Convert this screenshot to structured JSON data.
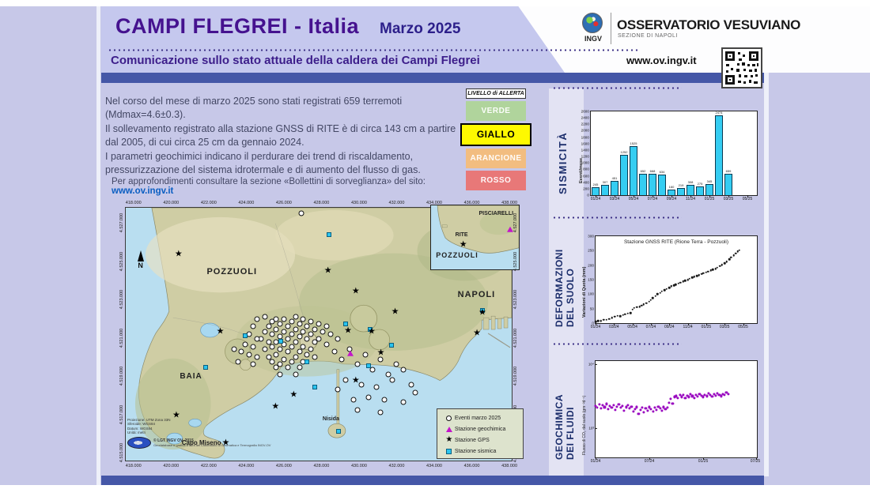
{
  "header": {
    "title": "CAMPI FLEGREI  -  Italia",
    "date": "Marzo 2025",
    "subtitle": "Comunicazione sullo stato attuale della caldera dei Campi Flegrei",
    "org_logo": "INGV",
    "org_name": "OSSERVATORIO VESUVIANO",
    "org_section": "SEZIONE DI NAPOLI",
    "website": "www.ov.ingv.it"
  },
  "summary": {
    "p1": "Nel corso del mese di marzo 2025 sono stati registrati 659 terremoti (Mdmax=4.6±0.3).",
    "p2": "Il sollevamento registrato alla stazione GNSS di RITE è di circa 143 cm a partire dal 2005, di cui circa 25 cm da gennaio 2024.",
    "p3": "I parametri geochimici indicano il perdurare dei trend di riscaldamento, pressurizzazione  del sistema idrotermale e di aumento del flusso di gas.",
    "footer_text": "Per approfondimenti consultare la sezione «Bollettini di sorveglianza» del sito: ",
    "footer_link": "www.ov.ingv.it"
  },
  "alert": {
    "title": "LIVELLO di ALLERTA",
    "levels": [
      {
        "label": "VERDE",
        "color": "#b0d49c",
        "active": false
      },
      {
        "label": "GIALLO",
        "color": "#fef900",
        "active": true
      },
      {
        "label": "ARANCIONE",
        "color": "#f2bd80",
        "active": false
      },
      {
        "label": "ROSSO",
        "color": "#e87878",
        "active": false
      }
    ]
  },
  "map": {
    "x_labels": [
      "418.000",
      "420.000",
      "422.000",
      "424.000",
      "426.000",
      "428.000",
      "430.000",
      "432.000",
      "434.000",
      "436.000",
      "438.000"
    ],
    "y_labels": [
      "4.527.000",
      "4.525.000",
      "4.523.000",
      "4.521.000",
      "4.519.000",
      "4.517.000",
      "4.515.000"
    ],
    "north_label": "N",
    "places": {
      "pozzuoli": "POZZUOLI",
      "napoli": "NAPOLI",
      "baia": "BAIA",
      "nisida": "Nisida",
      "capo_miseno": "Capo Miseno"
    },
    "inset": {
      "pisciarelli": "PISCIARELLI",
      "rite": "RITE",
      "pozzuoli": "POZZUOLI"
    },
    "credits": {
      "lines": [
        "Proiezione: UTM Zona 33N",
        "Sferoide: WGS84",
        "Datum: WGS84",
        "Unità: metri"
      ],
      "copyright": "© LGT INGV OV, 2015",
      "sub": "Geodatabase e grafica a cura del Laboratorio di Geomatica e Termografia INGV-OV"
    },
    "legend": [
      {
        "marker": "circle",
        "label": "Eventi marzo 2025"
      },
      {
        "marker": "triangle",
        "label": "Stazione geochimica"
      },
      {
        "marker": "star",
        "label": "Stazione GPS"
      },
      {
        "marker": "square",
        "label": "Stazione sismica"
      }
    ],
    "markers": {
      "events": [
        [
          45.5,
          2.2
        ],
        [
          35,
          52
        ],
        [
          36,
          49
        ],
        [
          36,
          56
        ],
        [
          37,
          47
        ],
        [
          37,
          53
        ],
        [
          37,
          59
        ],
        [
          38,
          45
        ],
        [
          38,
          50
        ],
        [
          38,
          55
        ],
        [
          38,
          61
        ],
        [
          39,
          44
        ],
        [
          39,
          48
        ],
        [
          39,
          53
        ],
        [
          39,
          58
        ],
        [
          39,
          63
        ],
        [
          40,
          46
        ],
        [
          40,
          51
        ],
        [
          40,
          56
        ],
        [
          40,
          62
        ],
        [
          41,
          44
        ],
        [
          41,
          49
        ],
        [
          41,
          54
        ],
        [
          41,
          60
        ],
        [
          42,
          47
        ],
        [
          42,
          52
        ],
        [
          42,
          57
        ],
        [
          42,
          63
        ],
        [
          43,
          45
        ],
        [
          43,
          50
        ],
        [
          43,
          55
        ],
        [
          43,
          61
        ],
        [
          44,
          43
        ],
        [
          44,
          48
        ],
        [
          44,
          53
        ],
        [
          44,
          59
        ],
        [
          45,
          46
        ],
        [
          45,
          51
        ],
        [
          45,
          57
        ],
        [
          45,
          63
        ],
        [
          46,
          44
        ],
        [
          46,
          49
        ],
        [
          46,
          55
        ],
        [
          46,
          61
        ],
        [
          47,
          47
        ],
        [
          47,
          52
        ],
        [
          47,
          58
        ],
        [
          48,
          45
        ],
        [
          48,
          50
        ],
        [
          48,
          56
        ],
        [
          49,
          48
        ],
        [
          49,
          53
        ],
        [
          49,
          59
        ],
        [
          50,
          46
        ],
        [
          50,
          52
        ],
        [
          51,
          49
        ],
        [
          31,
          54
        ],
        [
          32,
          50
        ],
        [
          32,
          58
        ],
        [
          33,
          47
        ],
        [
          33,
          55
        ],
        [
          33,
          62
        ],
        [
          34,
          52
        ],
        [
          34,
          59
        ],
        [
          30,
          57
        ],
        [
          29,
          61
        ],
        [
          28,
          56
        ],
        [
          52,
          47
        ],
        [
          52,
          54
        ],
        [
          53,
          50
        ],
        [
          54,
          57
        ],
        [
          55,
          52
        ],
        [
          34,
          44
        ],
        [
          36,
          43
        ],
        [
          40,
          66
        ],
        [
          44,
          66
        ],
        [
          56,
          60
        ],
        [
          58,
          56
        ],
        [
          60,
          62
        ],
        [
          62,
          58
        ],
        [
          64,
          64
        ],
        [
          66,
          60
        ],
        [
          68,
          66
        ],
        [
          70,
          62
        ],
        [
          57,
          68
        ],
        [
          61,
          70
        ],
        [
          65,
          71
        ],
        [
          69,
          68
        ],
        [
          72,
          64
        ],
        [
          74,
          70
        ],
        [
          63,
          75
        ],
        [
          59,
          76
        ],
        [
          55,
          72
        ],
        [
          67,
          76
        ],
        [
          72,
          77
        ],
        [
          75,
          73
        ],
        [
          60,
          80
        ],
        [
          66,
          81
        ]
      ],
      "gps": [
        [
          13.7,
          18.9
        ],
        [
          52.4,
          25.2
        ],
        [
          59.6,
          33.5
        ],
        [
          69.8,
          41.6
        ],
        [
          92.4,
          41.9
        ],
        [
          91,
          50
        ],
        [
          57.6,
          49.1
        ],
        [
          63.7,
          49.4
        ],
        [
          66.1,
          57.8
        ],
        [
          59.6,
          68.9
        ],
        [
          43.5,
          74.5
        ],
        [
          24.5,
          49.4
        ],
        [
          13.1,
          82.6
        ],
        [
          25.9,
          93.5
        ],
        [
          38.8,
          79.2
        ]
      ],
      "seismic": [
        [
          52.7,
          10.6
        ],
        [
          92.4,
          40.7
        ],
        [
          63.3,
          48.1
        ],
        [
          68.8,
          54.3
        ],
        [
          62.9,
          62.4
        ],
        [
          55.1,
          88.5
        ],
        [
          31,
          50.6
        ],
        [
          40.2,
          52.8
        ],
        [
          47,
          61
        ],
        [
          57,
          46
        ],
        [
          20.7,
          63
        ],
        [
          49,
          71
        ]
      ],
      "geochem": [
        [
          58.2,
          57.8
        ]
      ]
    }
  },
  "panels": {
    "seismicity_label": "SISMICITÀ",
    "deformation_label": [
      "DEFORMAZIONI",
      "DEL SUOLO"
    ],
    "geochem_label": [
      "GEOCHIMICA",
      "DEI FLUIDI"
    ]
  },
  "chart_data": [
    {
      "type": "bar",
      "name": "sismicita",
      "ylabel": "Eventi/mese",
      "ylim": [
        0,
        2600
      ],
      "ytick_step": 200,
      "categories": [
        "01/24",
        "02/24",
        "03/24",
        "04/24",
        "05/24",
        "06/24",
        "07/24",
        "08/24",
        "09/24",
        "10/24",
        "11/24",
        "12/24",
        "01/25",
        "02/25",
        "03/25"
      ],
      "values": [
        245,
        307,
        451,
        1252,
        1525,
        652,
        668,
        634,
        160,
        219,
        308,
        275,
        345,
        2474,
        659
      ],
      "x_axis_labels": [
        "01/24",
        "03/24",
        "05/24",
        "07/24",
        "09/24",
        "11/24",
        "01/25",
        "03/25",
        "05/25"
      ],
      "x_span_months": 17.5,
      "bar_color": "#35cdf2",
      "grid": false
    },
    {
      "type": "scatter",
      "name": "deformazione",
      "title": "Stazione GNSS RITE (Rione Terra - Pozzuoli)",
      "ylabel": "Variazioni di Quota (mm)",
      "ylim": [
        0,
        300
      ],
      "yticks": [
        0,
        50,
        100,
        150,
        200,
        250,
        300
      ],
      "x_axis_labels": [
        "01/24",
        "03/24",
        "05/24",
        "07/24",
        "09/24",
        "11/24",
        "01/25",
        "03/25",
        "05/25"
      ],
      "x_span_months": 17.5,
      "point_color": "#1a1a1a",
      "grid": false,
      "points": [
        [
          0,
          5
        ],
        [
          0.3,
          8
        ],
        [
          0.6,
          7
        ],
        [
          0.9,
          12
        ],
        [
          1.2,
          11
        ],
        [
          1.5,
          15
        ],
        [
          1.8,
          19
        ],
        [
          2.1,
          22
        ],
        [
          2.4,
          25
        ],
        [
          2.7,
          24
        ],
        [
          3,
          28
        ],
        [
          3.2,
          31
        ],
        [
          3.5,
          33
        ],
        [
          3.8,
          35
        ],
        [
          4,
          47
        ],
        [
          4.2,
          52
        ],
        [
          4.5,
          55
        ],
        [
          4.8,
          57
        ],
        [
          5,
          61
        ],
        [
          5.2,
          65
        ],
        [
          5.5,
          69
        ],
        [
          5.8,
          74
        ],
        [
          6,
          80
        ],
        [
          6.2,
          87
        ],
        [
          6.5,
          94
        ],
        [
          6.7,
          100
        ],
        [
          7,
          105
        ],
        [
          7.2,
          110
        ],
        [
          7.5,
          114
        ],
        [
          7.7,
          118
        ],
        [
          8,
          122
        ],
        [
          8.2,
          127
        ],
        [
          8.5,
          130
        ],
        [
          8.7,
          133
        ],
        [
          9,
          137
        ],
        [
          9.2,
          140
        ],
        [
          9.5,
          144
        ],
        [
          9.7,
          147
        ],
        [
          10,
          150
        ],
        [
          10.2,
          153
        ],
        [
          10.5,
          157
        ],
        [
          10.7,
          160
        ],
        [
          11,
          163
        ],
        [
          11.2,
          166
        ],
        [
          11.5,
          170
        ],
        [
          11.7,
          172
        ],
        [
          12,
          175
        ],
        [
          12.2,
          178
        ],
        [
          12.5,
          182
        ],
        [
          12.7,
          185
        ],
        [
          13,
          188
        ],
        [
          13.2,
          192
        ],
        [
          13.5,
          197
        ],
        [
          13.7,
          201
        ],
        [
          14,
          206
        ],
        [
          14.2,
          212
        ],
        [
          14.5,
          220
        ],
        [
          14.7,
          227
        ],
        [
          15,
          234
        ],
        [
          15.2,
          241
        ],
        [
          15.4,
          247
        ],
        [
          15.6,
          251
        ]
      ]
    },
    {
      "type": "scatter",
      "name": "geochimica",
      "ylabel": "Flusso di CO₂ dal suolo (gm⁻²d⁻¹)",
      "yscale": "log",
      "ytick_labels": [
        "10⁴",
        "10³"
      ],
      "ytick_exps": [
        4,
        3
      ],
      "axis_top_exp": 4.05,
      "axis_decades": 1.5,
      "x_axis_labels": [
        "01/24",
        "07/24",
        "01/25",
        "07/25"
      ],
      "x_span_months": 18,
      "point_color": "#9a0ac0",
      "grid": false,
      "points": [
        [
          0,
          2250
        ],
        [
          0.2,
          2100
        ],
        [
          0.4,
          2350
        ],
        [
          0.6,
          2050
        ],
        [
          0.8,
          2300
        ],
        [
          1,
          2150
        ],
        [
          1.2,
          2400
        ],
        [
          1.4,
          2000
        ],
        [
          1.6,
          2250
        ],
        [
          1.8,
          2100
        ],
        [
          2,
          2300
        ],
        [
          2.2,
          1950
        ],
        [
          2.4,
          2200
        ],
        [
          2.6,
          2350
        ],
        [
          2.8,
          2100
        ],
        [
          3,
          2250
        ],
        [
          3.2,
          1900
        ],
        [
          3.4,
          2150
        ],
        [
          3.6,
          2300
        ],
        [
          3.8,
          2050
        ],
        [
          4,
          2200
        ],
        [
          4.2,
          1850
        ],
        [
          4.4,
          2000
        ],
        [
          4.6,
          2150
        ],
        [
          4.8,
          1700
        ],
        [
          5,
          1950
        ],
        [
          5.2,
          2100
        ],
        [
          5.4,
          1800
        ],
        [
          5.6,
          2050
        ],
        [
          5.8,
          1900
        ],
        [
          6,
          2150
        ],
        [
          6.2,
          2000
        ],
        [
          6.4,
          1850
        ],
        [
          6.6,
          2100
        ],
        [
          6.8,
          1950
        ],
        [
          7,
          2200
        ],
        [
          7.2,
          2050
        ],
        [
          7.4,
          1900
        ],
        [
          7.6,
          2150
        ],
        [
          7.8,
          2000
        ],
        [
          8,
          2100
        ],
        [
          8.2,
          2500
        ],
        [
          8.4,
          2900
        ],
        [
          8.6,
          2450
        ],
        [
          8.8,
          3100
        ],
        [
          9,
          3200
        ],
        [
          9.2,
          3000
        ],
        [
          9.4,
          3300
        ],
        [
          9.6,
          3100
        ],
        [
          9.8,
          3350
        ],
        [
          10,
          2950
        ],
        [
          10.2,
          3250
        ],
        [
          10.4,
          3100
        ],
        [
          10.6,
          3400
        ],
        [
          10.8,
          3200
        ],
        [
          11,
          3000
        ],
        [
          11.2,
          3300
        ],
        [
          11.4,
          3150
        ],
        [
          11.6,
          3450
        ],
        [
          11.8,
          3250
        ],
        [
          12,
          3100
        ],
        [
          12.2,
          3350
        ],
        [
          12.4,
          3200
        ],
        [
          12.6,
          3500
        ],
        [
          12.8,
          3300
        ],
        [
          13,
          3150
        ],
        [
          13.2,
          3400
        ],
        [
          13.4,
          3250
        ],
        [
          13.6,
          3550
        ],
        [
          13.8,
          3350
        ],
        [
          14,
          3200
        ],
        [
          14.2,
          3450
        ],
        [
          14.4,
          3300
        ],
        [
          14.6,
          3600
        ],
        [
          14.8,
          3400
        ]
      ]
    }
  ]
}
